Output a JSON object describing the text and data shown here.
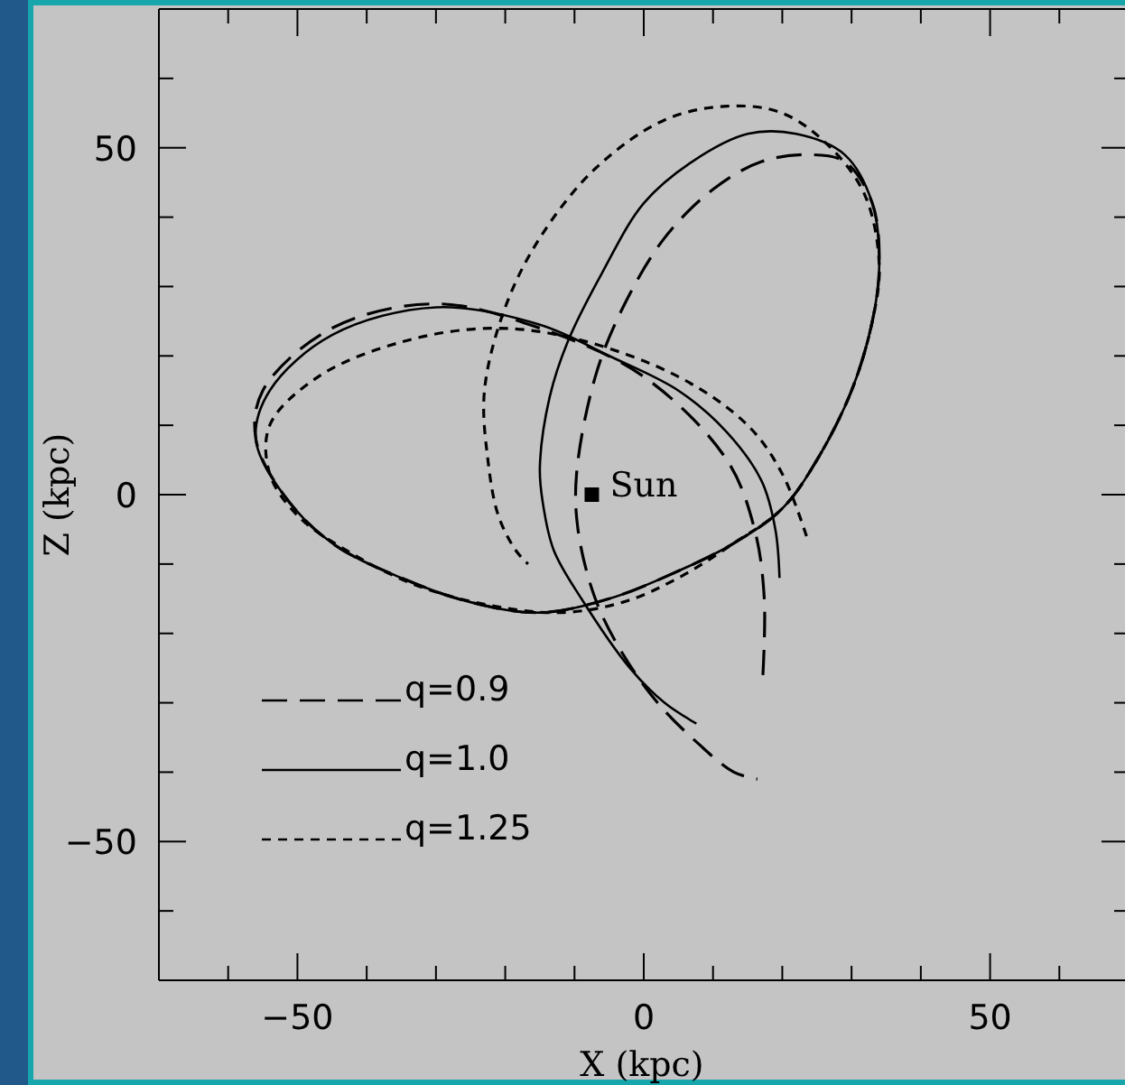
{
  "chart_data": {
    "type": "line",
    "xlabel": "X (kpc)",
    "ylabel": "Z (kpc)",
    "xlim": [
      -70,
      70
    ],
    "ylim": [
      -70,
      70
    ],
    "xticks": [
      {
        "value": -60,
        "label": null
      },
      -50,
      {
        "value": -40,
        "label": null
      },
      {
        "value": -30,
        "label": null
      },
      {
        "value": -20,
        "label": null
      },
      {
        "value": -10,
        "label": null
      },
      0,
      {
        "value": 10,
        "label": null
      },
      {
        "value": 20,
        "label": null
      },
      {
        "value": 30,
        "label": null
      },
      {
        "value": 40,
        "label": null
      },
      50,
      {
        "value": 60,
        "label": null
      }
    ],
    "yticks": [
      {
        "value": -60,
        "label": null
      },
      -50,
      {
        "value": -40,
        "label": null
      },
      {
        "value": -30,
        "label": null
      },
      {
        "value": -20,
        "label": null
      },
      {
        "value": -10,
        "label": null
      },
      0,
      {
        "value": 10,
        "label": null
      },
      {
        "value": 20,
        "label": null
      },
      {
        "value": 30,
        "label": null
      },
      {
        "value": 40,
        "label": null
      },
      50,
      {
        "value": 60,
        "label": null
      }
    ],
    "grid": false,
    "legend": "bottom left",
    "series": [
      {
        "name": "q=0.9",
        "color": "#000000",
        "line_style": "dashed",
        "x": [
          17.2,
          17.4,
          16,
          12,
          0,
          -15,
          -30,
          -45,
          -55,
          -56,
          -52,
          -45,
          -35,
          -25,
          -15,
          -5,
          5,
          13,
          20,
          25,
          30,
          33,
          34,
          33,
          29,
          24,
          17,
          10,
          3,
          -3,
          -7,
          -9.7,
          -9.5,
          -7,
          -3,
          2,
          8,
          13,
          16.4
        ],
        "values": [
          -26,
          -15,
          -5,
          5,
          17,
          24,
          27.5,
          24,
          15,
          8,
          0,
          -7,
          -12,
          -15.5,
          -17,
          -15,
          -11,
          -7,
          -2,
          5,
          15,
          25,
          33,
          42,
          48,
          49,
          48,
          44,
          37,
          27,
          17,
          3,
          -5,
          -15,
          -23,
          -30,
          -36,
          -40,
          -41
        ]
      },
      {
        "name": "q=1.0",
        "color": "#000000",
        "line_style": "solid",
        "x": [
          19.6,
          19,
          17,
          12,
          5,
          -5,
          -15,
          -30,
          -45,
          -54,
          -56,
          -52,
          -45,
          -35,
          -25,
          -15,
          -5,
          5,
          13,
          20,
          25,
          30,
          33,
          34,
          33,
          29,
          22,
          15,
          7,
          0,
          -6,
          -11,
          -13.6,
          -15,
          -14.6,
          -13,
          -9,
          -2,
          3,
          7.6
        ],
        "values": [
          -12,
          -5,
          2,
          9,
          15,
          20,
          24.5,
          27,
          23,
          15,
          8,
          0,
          -7,
          -12,
          -15.5,
          -17,
          -15,
          -11,
          -7,
          -2,
          5,
          15,
          25,
          33,
          42,
          49,
          52,
          52,
          48,
          42,
          32,
          22,
          14,
          4,
          -1,
          -8,
          -15,
          -25,
          -30,
          -33
        ]
      },
      {
        "name": "q=1.25",
        "color": "#000000",
        "line_style": "dotted",
        "x": [
          23.5,
          20,
          15,
          5,
          -10,
          -22,
          -35,
          -47,
          -54,
          -54,
          -50,
          -43,
          -33,
          -22,
          -12,
          -3,
          5,
          13,
          20,
          25,
          30,
          33,
          34,
          32,
          27,
          20,
          12,
          3,
          -7,
          -15,
          -20,
          -23,
          -22.5,
          -21,
          -18.5,
          -16.7
        ],
        "values": [
          -6,
          3,
          10,
          17,
          22.5,
          24,
          22,
          17,
          10,
          3,
          -3,
          -8,
          -13,
          -16,
          -17,
          -15.5,
          -12,
          -7,
          -2,
          5,
          15,
          25,
          33,
          43,
          50,
          55,
          56,
          54,
          47,
          37,
          27,
          15,
          5,
          -3,
          -8,
          -10
        ]
      },
      {
        "name": "Sun",
        "type": "scatter",
        "marker": "square",
        "color": "#000000",
        "x": [
          -7.5
        ],
        "values": [
          0
        ]
      }
    ]
  }
}
